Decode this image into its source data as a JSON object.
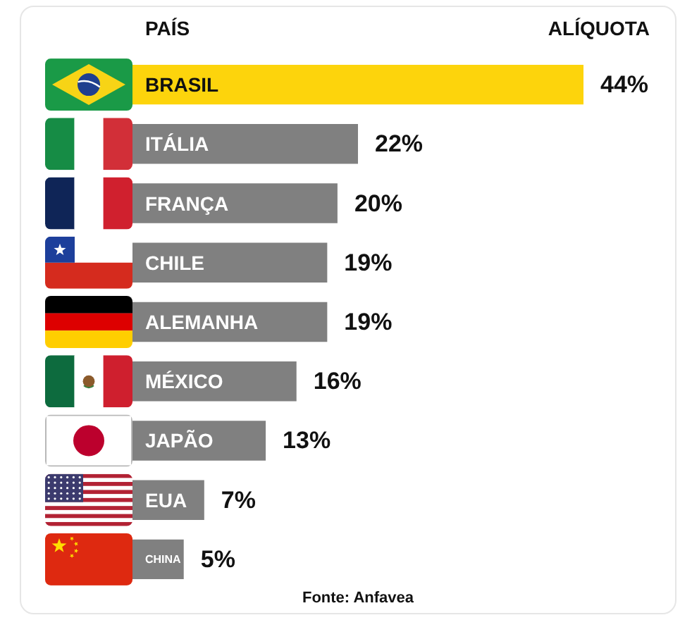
{
  "chart_data": {
    "type": "bar",
    "orientation": "horizontal",
    "xlabel": "ALÍQUOTA",
    "ylabel": "PAÍS",
    "categories": [
      "BRASIL",
      "ITÁLIA",
      "FRANÇA",
      "CHILE",
      "ALEMANHA",
      "MÉXICO",
      "JAPÃO",
      "EUA",
      "CHINA"
    ],
    "values": [
      44,
      22,
      20,
      19,
      19,
      16,
      13,
      7,
      5
    ],
    "value_labels": [
      "44%",
      "22%",
      "20%",
      "19%",
      "19%",
      "16%",
      "13%",
      "7%",
      "5%"
    ],
    "colors": [
      "#fdd40c",
      "#808080",
      "#808080",
      "#808080",
      "#808080",
      "#808080",
      "#808080",
      "#808080",
      "#808080"
    ],
    "tick_labels": "y",
    "annotations": [
      "Fonte: Anfavea"
    ]
  }
}
